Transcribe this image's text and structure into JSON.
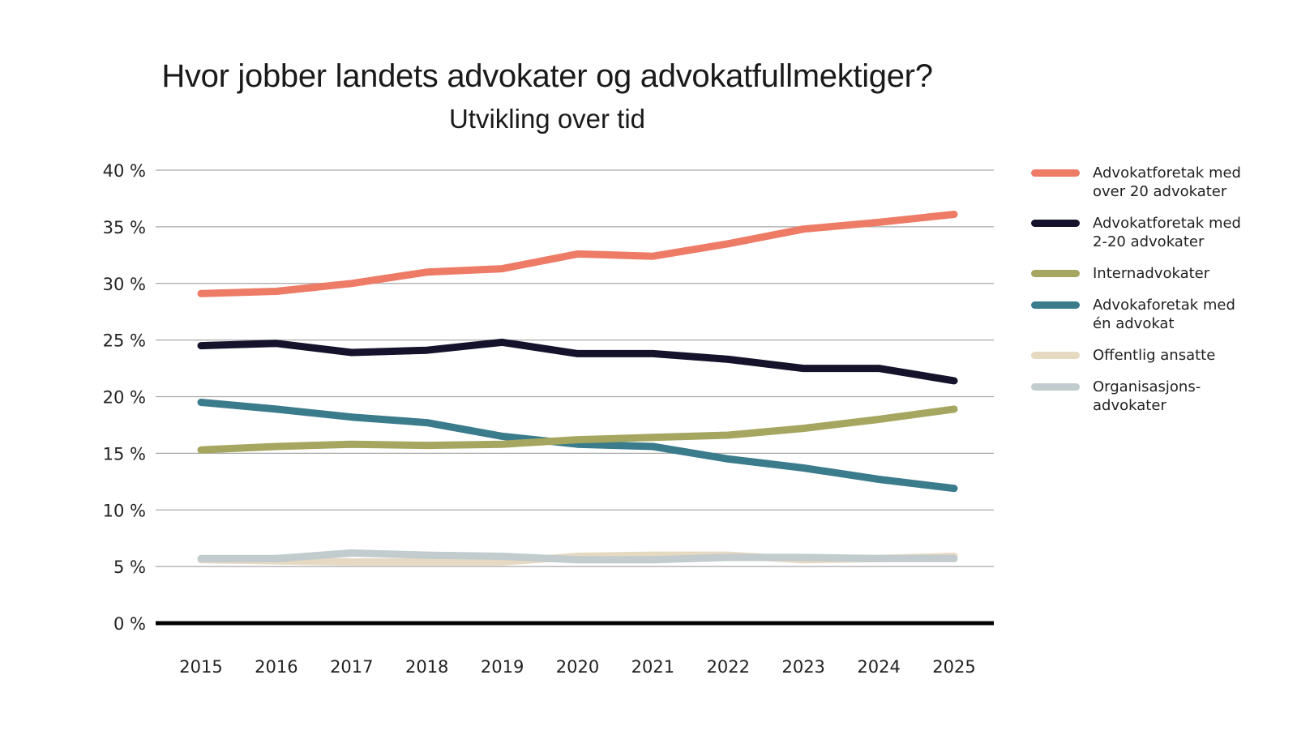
{
  "chart_data": {
    "type": "line",
    "title": "Hvor jobber landets advokater og advokatfullmektiger?",
    "subtitle": "Utvikling over tid",
    "xlabel": "",
    "ylabel": "",
    "x": [
      "2015",
      "2016",
      "2017",
      "2018",
      "2019",
      "2020",
      "2021",
      "2022",
      "2023",
      "2024",
      "2025"
    ],
    "ylim": [
      0,
      40
    ],
    "yticks": [
      0,
      5,
      10,
      15,
      20,
      25,
      30,
      35,
      40
    ],
    "ytick_labels": [
      "0 %",
      "5 %",
      "10 %",
      "15 %",
      "20 %",
      "25 %",
      "30 %",
      "35 %",
      "40 %"
    ],
    "grid": true,
    "legend_position": "right",
    "series": [
      {
        "name": "Advokatforetak med over 20 advokater",
        "legend_lines": [
          "Advokatforetak med",
          "over 20 advokater"
        ],
        "color": "#ED7B66",
        "values": [
          29.1,
          29.3,
          30.0,
          31.0,
          31.3,
          32.6,
          32.4,
          33.5,
          34.8,
          35.4,
          36.1
        ]
      },
      {
        "name": "Advokatforetak med 2-20 advokater",
        "legend_lines": [
          "Advokatforetak med",
          "2-20 advokater"
        ],
        "color": "#15132B",
        "values": [
          24.5,
          24.7,
          23.9,
          24.1,
          24.8,
          23.8,
          23.8,
          23.3,
          22.5,
          22.5,
          21.4
        ]
      },
      {
        "name": "Internadvokater",
        "legend_lines": [
          "Internadvokater"
        ],
        "color": "#A5A760",
        "values": [
          15.3,
          15.6,
          15.8,
          15.7,
          15.8,
          16.2,
          16.4,
          16.6,
          17.2,
          18.0,
          18.9
        ]
      },
      {
        "name": "Advokaforetak med én advokat",
        "legend_lines": [
          "Advokaforetak med",
          "én advokat"
        ],
        "color": "#3A7B8C",
        "values": [
          19.5,
          18.9,
          18.2,
          17.7,
          16.5,
          15.8,
          15.6,
          14.5,
          13.7,
          12.7,
          11.9
        ]
      },
      {
        "name": "Offentlig ansatte",
        "legend_lines": [
          "Offentlig ansatte"
        ],
        "color": "#E6D9C2",
        "values": [
          5.6,
          5.5,
          5.4,
          5.4,
          5.4,
          5.9,
          6.0,
          6.0,
          5.6,
          5.7,
          5.9
        ]
      },
      {
        "name": "Organisasjonsadvokater",
        "legend_lines": [
          "Organisasjons-",
          "advokater"
        ],
        "color": "#C2CBCD",
        "values": [
          5.7,
          5.7,
          6.2,
          6.0,
          5.9,
          5.6,
          5.6,
          5.8,
          5.8,
          5.7,
          5.7
        ]
      }
    ]
  }
}
